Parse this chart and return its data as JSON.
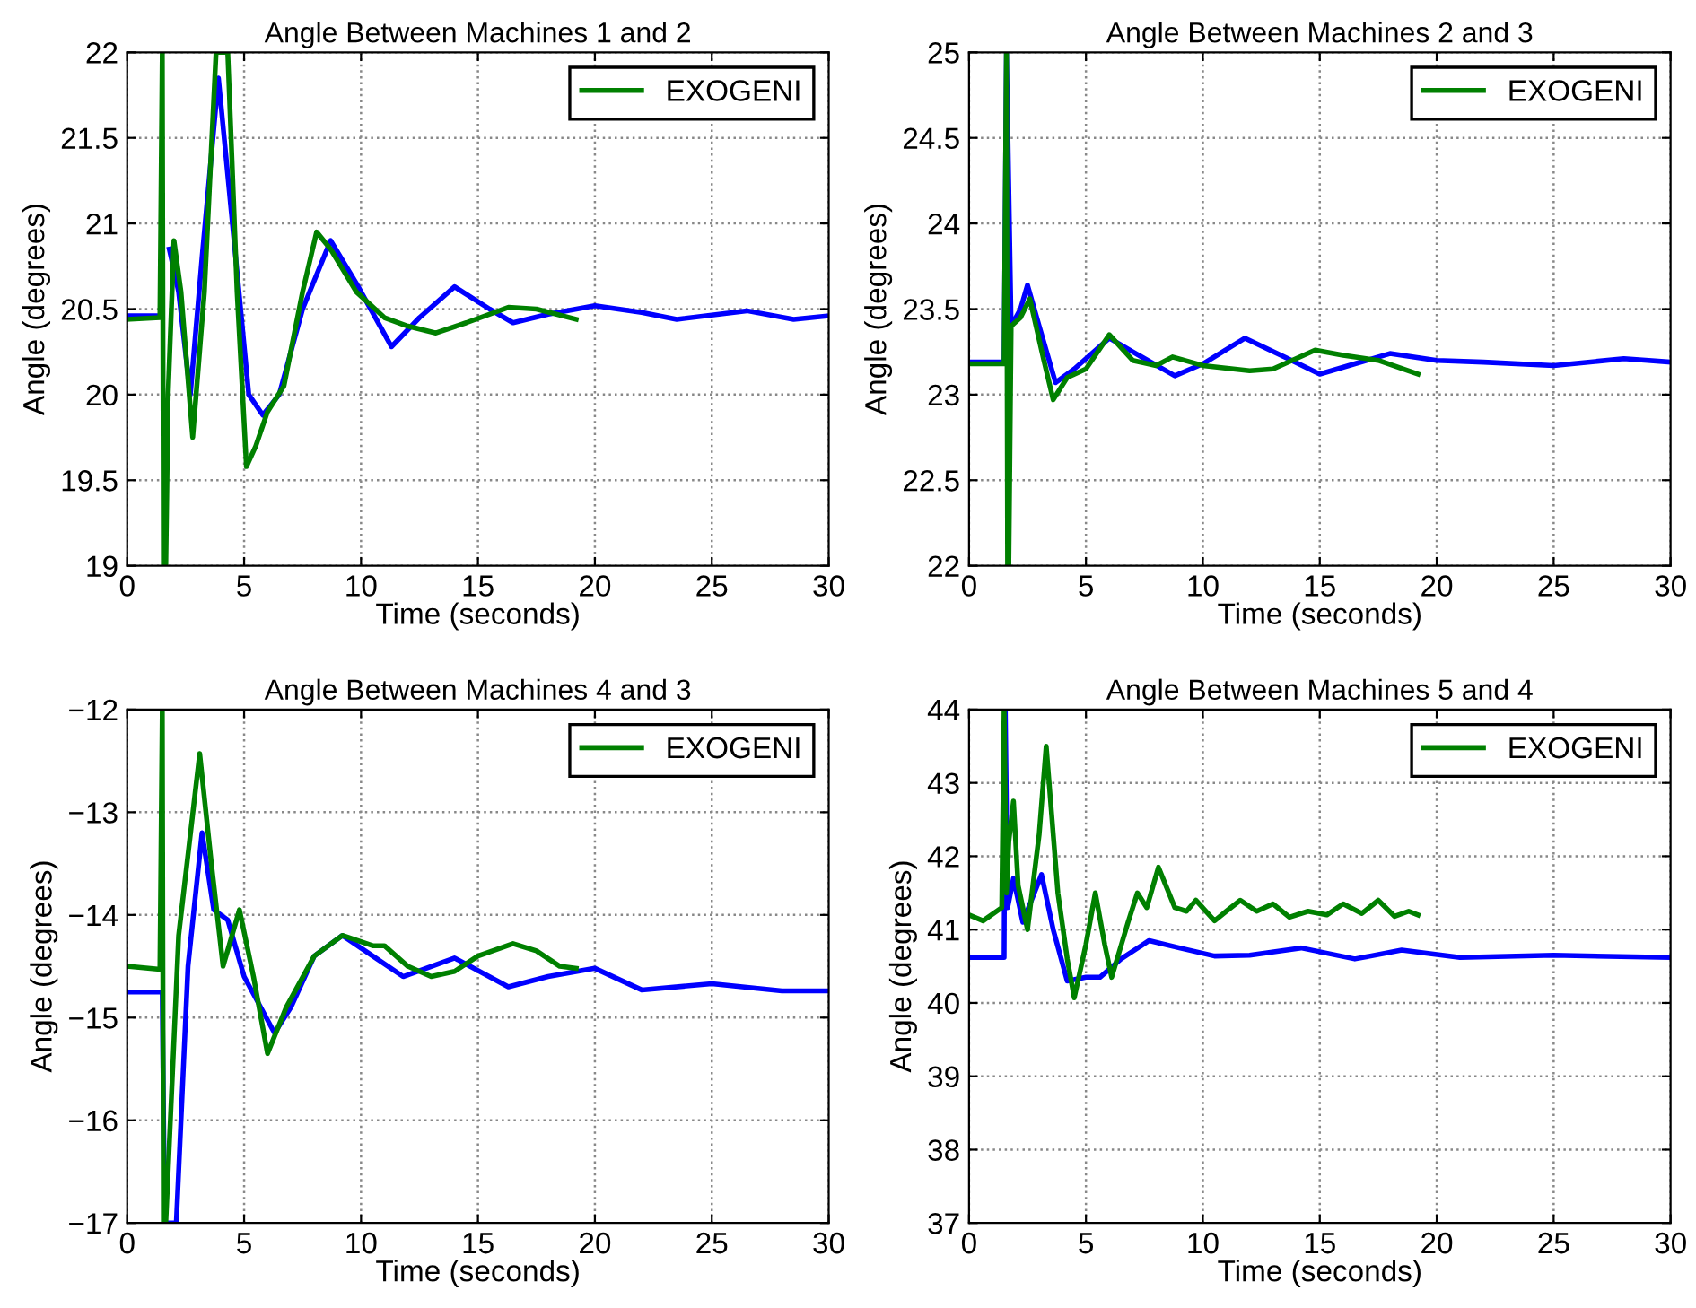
{
  "chart_data": [
    {
      "type": "line",
      "title": "Angle Between Machines 1 and 2",
      "xlabel": "Time (seconds)",
      "ylabel": "Angle (degrees)",
      "xlim": [
        0,
        30
      ],
      "xticks": [
        0,
        5,
        10,
        15,
        20,
        25,
        30
      ],
      "ylim": [
        19,
        22
      ],
      "yticks": [
        19,
        19.5,
        20,
        20.5,
        21,
        21.5,
        22
      ],
      "grid": true,
      "legend": "top right",
      "line_style": "solid",
      "series": [
        {
          "color": "#0000ff",
          "x": [
            0,
            1.5,
            1.6,
            1.8,
            2.2,
            2.7,
            3.2,
            3.9,
            4.5,
            5.2,
            5.8,
            6.5,
            7.5,
            8.7,
            9.8,
            11.3,
            12.5,
            14,
            15.5,
            16.5,
            18,
            20,
            22,
            23.5,
            26.5,
            28.5,
            30
          ],
          "values": [
            20.46,
            20.46,
            null,
            20.85,
            20.6,
            20.0,
            20.8,
            21.85,
            21.0,
            20.0,
            19.88,
            20.0,
            20.5,
            20.9,
            20.65,
            20.28,
            20.45,
            20.63,
            20.5,
            20.42,
            20.47,
            20.52,
            20.48,
            20.44,
            20.49,
            20.44,
            20.46
          ]
        },
        {
          "name": "EXOGENI",
          "color": "#008000",
          "x": [
            0,
            1.4,
            1.5,
            1.55,
            1.65,
            1.75,
            2.0,
            2.3,
            2.8,
            3.3,
            3.8,
            4.3,
            4.7,
            5.1,
            5.5,
            6,
            6.7,
            7.5,
            8.1,
            8.7,
            9.8,
            11,
            12,
            13.2,
            14.5,
            16.3,
            17.5,
            19.2
          ],
          "values": [
            20.44,
            20.45,
            22,
            19,
            19,
            20.0,
            20.9,
            20.6,
            19.75,
            20.6,
            22,
            22,
            20.6,
            19.58,
            19.7,
            19.9,
            20.05,
            20.6,
            20.95,
            20.85,
            20.6,
            20.45,
            20.4,
            20.36,
            20.42,
            20.51,
            20.5,
            20.44
          ]
        }
      ]
    },
    {
      "type": "line",
      "title": "Angle Between Machines 2 and 3",
      "xlabel": "Time (seconds)",
      "ylabel": "Angle (degrees)",
      "xlim": [
        0,
        30
      ],
      "xticks": [
        0,
        5,
        10,
        15,
        20,
        25,
        30
      ],
      "ylim": [
        22,
        25
      ],
      "yticks": [
        22,
        22.5,
        23,
        23.5,
        24,
        24.5,
        25
      ],
      "grid": true,
      "legend": "top right",
      "line_style": "solid",
      "series": [
        {
          "color": "#0000ff",
          "x": [
            0,
            1.5,
            1.6,
            1.8,
            2.2,
            2.5,
            3,
            3.7,
            4.5,
            6,
            7,
            8.8,
            10,
            11.8,
            13.5,
            15,
            16.5,
            18,
            20,
            22,
            25,
            28,
            30
          ],
          "values": [
            23.19,
            23.19,
            25,
            23.4,
            23.5,
            23.64,
            23.4,
            23.07,
            23.15,
            23.33,
            23.25,
            23.11,
            23.18,
            23.33,
            23.22,
            23.12,
            23.18,
            23.24,
            23.2,
            23.19,
            23.17,
            23.21,
            23.19
          ]
        },
        {
          "name": "EXOGENI",
          "color": "#008000",
          "x": [
            0,
            1.5,
            1.6,
            1.65,
            1.7,
            1.8,
            2.2,
            2.6,
            3.2,
            3.6,
            4.2,
            5,
            6,
            7,
            8,
            8.7,
            10,
            12,
            13,
            14.8,
            16,
            17.5,
            19.2
          ],
          "values": [
            23.18,
            23.18,
            25,
            22,
            22,
            23.4,
            23.45,
            23.56,
            23.2,
            22.97,
            23.1,
            23.15,
            23.35,
            23.2,
            23.17,
            23.22,
            23.17,
            23.14,
            23.15,
            23.26,
            23.23,
            23.2,
            23.12
          ]
        }
      ]
    },
    {
      "type": "line",
      "title": "Angle Between Machines 4 and 3",
      "xlabel": "Time (seconds)",
      "ylabel": "Angle (degrees)",
      "xlim": [
        0,
        30
      ],
      "xticks": [
        0,
        5,
        10,
        15,
        20,
        25,
        30
      ],
      "ylim": [
        -17,
        -12
      ],
      "yticks": [
        -17,
        -16,
        -15,
        -14,
        -13,
        -12
      ],
      "grid": true,
      "legend": "top right",
      "line_style": "solid",
      "series": [
        {
          "color": "#0000ff",
          "x": [
            0,
            1.5,
            1.6,
            2.1,
            2.6,
            3.2,
            3.7,
            4.3,
            5,
            6.3,
            7,
            8,
            9.2,
            10.5,
            11.8,
            14,
            16.3,
            18,
            20,
            22,
            25,
            28,
            30
          ],
          "values": [
            -14.75,
            -14.75,
            -17,
            -17,
            -14.5,
            -13.2,
            -13.95,
            -14.05,
            -14.6,
            -15.15,
            -14.9,
            -14.4,
            -14.2,
            -14.4,
            -14.6,
            -14.42,
            -14.7,
            -14.6,
            -14.52,
            -14.73,
            -14.67,
            -14.74,
            -14.74
          ]
        },
        {
          "name": "EXOGENI",
          "color": "#008000",
          "x": [
            0,
            1.4,
            1.5,
            1.55,
            1.65,
            2.2,
            3.1,
            3.6,
            4.1,
            4.8,
            5.4,
            6,
            6.8,
            8,
            9.2,
            10.5,
            11,
            12,
            13,
            14,
            15,
            16.5,
            17.5,
            18.5,
            19.2
          ],
          "values": [
            -14.5,
            -14.53,
            -12,
            -17,
            -17,
            -14.2,
            -12.43,
            -13.5,
            -14.5,
            -13.95,
            -14.6,
            -15.35,
            -14.9,
            -14.4,
            -14.2,
            -14.3,
            -14.3,
            -14.5,
            -14.6,
            -14.55,
            -14.4,
            -14.28,
            -14.35,
            -14.5,
            -14.52
          ]
        }
      ]
    },
    {
      "type": "line",
      "title": "Angle Between Machines 5 and 4",
      "xlabel": "Time (seconds)",
      "ylabel": "Angle (degrees)",
      "xlim": [
        0,
        30
      ],
      "xticks": [
        0,
        5,
        10,
        15,
        20,
        25,
        30
      ],
      "ylim": [
        37,
        44
      ],
      "yticks": [
        37,
        38,
        39,
        40,
        41,
        42,
        43,
        44
      ],
      "grid": true,
      "legend": "top right",
      "line_style": "solid",
      "series": [
        {
          "color": "#0000ff",
          "x": [
            0,
            1.5,
            1.55,
            1.65,
            1.9,
            2.3,
            3.1,
            3.6,
            4.2,
            5,
            5.6,
            6.5,
            7.7,
            9,
            10.5,
            12,
            14.2,
            16.5,
            18.5,
            21,
            25,
            30
          ],
          "values": [
            40.62,
            40.62,
            44,
            41.3,
            41.7,
            41.1,
            41.75,
            41.0,
            40.3,
            40.35,
            40.35,
            40.6,
            40.85,
            40.75,
            40.64,
            40.65,
            40.75,
            40.6,
            40.72,
            40.62,
            40.65,
            40.62
          ]
        },
        {
          "name": "EXOGENI",
          "color": "#008000",
          "x": [
            0,
            0.6,
            1.4,
            1.5,
            1.6,
            1.7,
            1.9,
            2.1,
            2.5,
            3.0,
            3.3,
            3.8,
            4.2,
            4.5,
            5.0,
            5.4,
            5.8,
            6.1,
            6.8,
            7.2,
            7.6,
            8.1,
            8.8,
            9.3,
            9.7,
            10.5,
            11,
            11.6,
            12.3,
            13,
            13.7,
            14.5,
            15.3,
            16,
            16.8,
            17.5,
            18.2,
            18.8,
            19.2
          ],
          "values": [
            41.2,
            41.12,
            41.3,
            44,
            41.5,
            42.2,
            42.75,
            41.6,
            41.0,
            42.3,
            43.5,
            41.5,
            40.6,
            40.07,
            40.8,
            41.5,
            40.8,
            40.35,
            41.1,
            41.5,
            41.3,
            41.85,
            41.3,
            41.25,
            41.4,
            41.12,
            41.25,
            41.4,
            41.25,
            41.35,
            41.17,
            41.25,
            41.2,
            41.35,
            41.22,
            41.4,
            41.18,
            41.25,
            41.2
          ]
        }
      ]
    }
  ]
}
